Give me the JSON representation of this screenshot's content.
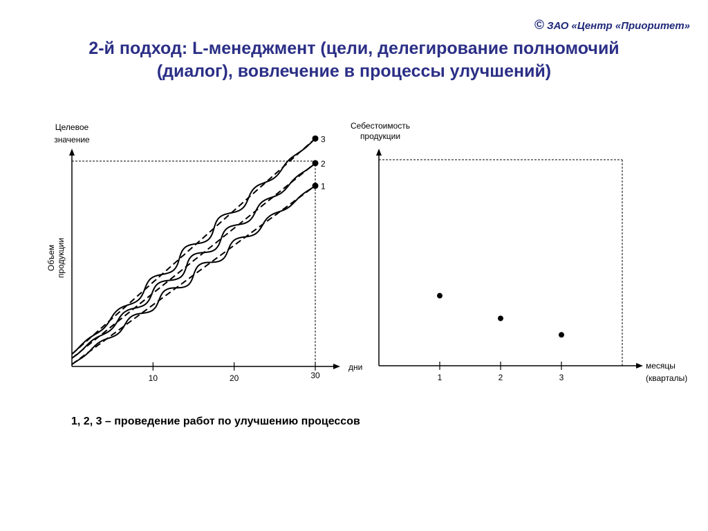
{
  "header": {
    "copyright_symbol": "©",
    "copyright_text": "ЗАО «Центр «Приоритет»",
    "title_line1": "2-й подход: L-менеджмент (цели, делегирование полномочий",
    "title_line2": "(диалог), вовлечение в процессы улучшений)"
  },
  "caption": "1, 2, 3 – проведение работ по улучшению процессов",
  "chart_data": [
    {
      "type": "line",
      "ylabel_top": [
        "Целевое",
        "значение"
      ],
      "ylabel_side": [
        "Объем",
        "продукции"
      ],
      "xlabel": "дни",
      "xlim": [
        0,
        30
      ],
      "ylim": [
        0,
        100
      ],
      "x_ticks": [
        10,
        20,
        30
      ],
      "x_tick_labels": [
        "10",
        "20",
        "30"
      ],
      "target_value": 100,
      "series": [
        {
          "name": "1",
          "x": [
            0,
            30
          ],
          "y": [
            1,
            88
          ],
          "end_marker": true
        },
        {
          "name": "2",
          "x": [
            0,
            30
          ],
          "y": [
            4,
            99
          ],
          "end_marker": true
        },
        {
          "name": "3",
          "x": [
            0,
            30
          ],
          "y": [
            6,
            111
          ],
          "end_marker": true
        }
      ]
    },
    {
      "type": "scatter",
      "ylabel_top": [
        "Себестоимость",
        "продукции"
      ],
      "xlabel_lines": [
        "месяцы",
        "(кварталы)"
      ],
      "xlim": [
        0,
        4
      ],
      "ylim": [
        0,
        100
      ],
      "x_ticks": [
        1,
        2,
        3
      ],
      "x_tick_labels": [
        "1",
        "2",
        "3"
      ],
      "points": [
        {
          "x": 1,
          "y": 34
        },
        {
          "x": 2,
          "y": 23
        },
        {
          "x": 3,
          "y": 15
        }
      ]
    }
  ]
}
